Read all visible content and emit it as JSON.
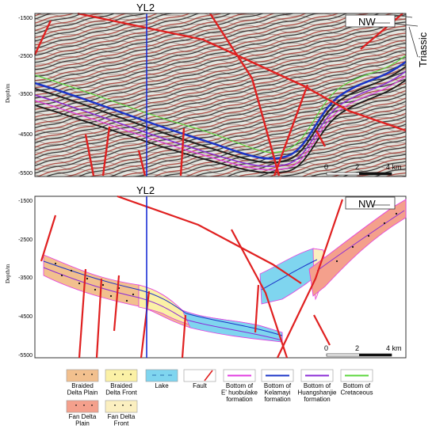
{
  "top_panel": {
    "well_label": "YL2",
    "direction": "NW",
    "side_label": "Triassic",
    "depth_axis_label": "Depth/m",
    "depth_ticks": [
      "-1500",
      "-2500",
      "-3500",
      "-4500",
      "-5500"
    ],
    "scale_ticks": [
      "0",
      "2",
      "4 km"
    ]
  },
  "bottom_panel": {
    "well_label": "YL2",
    "direction": "NW",
    "depth_axis_label": "Depth/m",
    "depth_ticks": [
      "-1500",
      "-2500",
      "-3500",
      "-4500",
      "-5500"
    ],
    "scale_ticks": [
      "0",
      "2",
      "4 km"
    ]
  },
  "legend": [
    {
      "id": "braided-delta-plain",
      "lines": [
        "Braided",
        "Delta Plain"
      ],
      "kind": "fill",
      "color": "#f2c08e",
      "mark": "dots"
    },
    {
      "id": "braided-delta-front",
      "lines": [
        "Braided",
        "Delta Front"
      ],
      "kind": "fill",
      "color": "#fbf1a6",
      "mark": "dots"
    },
    {
      "id": "lake",
      "lines": [
        "Lake"
      ],
      "kind": "fill",
      "color": "#7fd5ef",
      "mark": "dashes"
    },
    {
      "id": "fault",
      "lines": [
        "Fault"
      ],
      "kind": "fault",
      "color": "#e02020"
    },
    {
      "id": "bottom-ehuobulake",
      "lines": [
        "Bottom of",
        "E' huobulake",
        "formation"
      ],
      "kind": "line",
      "color": "#e23be0"
    },
    {
      "id": "bottom-kelamayi",
      "lines": [
        "Bottom of",
        "Kelamayi",
        "formation"
      ],
      "kind": "line",
      "color": "#1a33c7"
    },
    {
      "id": "bottom-huangshanjie",
      "lines": [
        "Bottom of",
        "Huangshanjie",
        "formation"
      ],
      "kind": "line",
      "color": "#8a2bd6"
    },
    {
      "id": "bottom-cretaceous",
      "lines": [
        "Bottom of",
        "Cretaceous"
      ],
      "kind": "line",
      "color": "#5bd63b"
    },
    {
      "id": "fan-delta-plain",
      "lines": [
        "Fan Delta",
        "Plain"
      ],
      "kind": "fill",
      "color": "#f4a08c",
      "mark": "dots"
    },
    {
      "id": "fan-delta-front",
      "lines": [
        "Fan Delta",
        "Front"
      ],
      "kind": "fill",
      "color": "#fbefc0",
      "mark": "dots"
    }
  ]
}
